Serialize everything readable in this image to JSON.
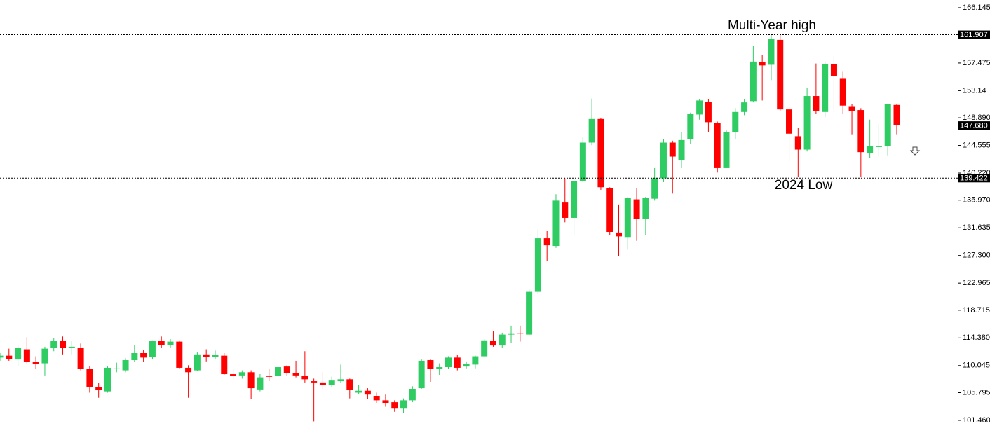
{
  "chart_data": {
    "type": "candlestick",
    "up_color": "#2ecc63",
    "down_color": "#ff0000",
    "ylim": [
      99.48,
      167.35
    ],
    "yticks": [
      166.145,
      157.475,
      153.14,
      {
        "value": 148.89,
        "label": "148.890"
      },
      144.555,
      {
        "value": 140.22,
        "label": "140.220"
      },
      {
        "value": 135.97,
        "label": "135.970"
      },
      131.635,
      {
        "value": 127.3,
        "label": "127.300"
      },
      122.965,
      118.715,
      {
        "value": 114.38,
        "label": "114.380"
      },
      110.045,
      105.795,
      {
        "value": 101.46,
        "label": "101.460"
      }
    ],
    "levels": [
      {
        "value": 161.907,
        "dotted": true
      },
      {
        "value": 147.68,
        "label": "147.680",
        "dotted": false
      },
      {
        "value": 139.422,
        "dotted": true
      }
    ],
    "annotations": [
      "Multi-Year high",
      "2024 Low"
    ],
    "open": [
      111.3,
      111.6,
      111.0,
      112.6,
      110.6,
      110.4,
      112.8,
      113.9,
      112.8,
      112.8,
      109.5,
      106.7,
      106.0,
      109.5,
      109.3,
      110.9,
      112.0,
      111.4,
      113.9,
      113.3,
      113.8,
      109.7,
      109.3,
      111.8,
      111.4,
      111.6,
      108.7,
      108.5,
      109.0,
      106.3,
      108.4,
      108.4,
      109.9,
      108.9,
      108.4,
      107.6,
      107.4,
      107.0,
      107.6,
      107.9,
      105.8,
      106.1,
      105.3,
      104.6,
      104.3,
      103.3,
      104.6,
      106.5,
      110.9,
      109.5,
      109.8,
      111.3,
      109.9,
      110.2,
      111.5,
      113.9,
      113.2,
      114.9,
      115.1,
      114.9,
      121.6,
      130.0,
      128.8,
      135.6,
      133.2,
      139.0,
      145.0,
      148.7,
      137.9,
      130.9,
      130.2,
      136.1,
      133.0,
      136.2,
      139.4,
      145.0,
      142.3,
      145.5,
      149.4,
      151.4,
      148.1,
      141.0,
      146.7,
      149.8,
      151.5,
      157.6,
      157.2,
      161.1,
      150.2,
      146.0,
      143.9,
      152.3,
      149.8,
      157.3,
      155.0,
      150.6,
      150.1,
      143.4,
      144.3,
      144.4,
      150.9
    ],
    "high": [
      112.0,
      112.7,
      113.2,
      114.5,
      111.5,
      113.0,
      114.3,
      114.6,
      113.9,
      113.5,
      110.0,
      107.3,
      109.9,
      110.5,
      111.2,
      113.3,
      112.5,
      114.0,
      114.6,
      114.2,
      114.0,
      110.1,
      112.1,
      112.6,
      112.4,
      112.0,
      109.5,
      109.3,
      109.3,
      108.7,
      109.6,
      110.1,
      110.1,
      110.8,
      112.3,
      108.0,
      109.0,
      108.3,
      110.2,
      108.0,
      107.0,
      106.5,
      105.8,
      105.5,
      104.6,
      104.9,
      106.8,
      111.0,
      111.0,
      110.4,
      111.5,
      111.7,
      110.7,
      111.6,
      114.2,
      115.4,
      115.2,
      116.3,
      116.3,
      122.0,
      131.4,
      131.2,
      136.9,
      139.4,
      139.4,
      145.9,
      151.9,
      148.8,
      138.0,
      135.3,
      136.5,
      137.8,
      136.5,
      141.0,
      145.6,
      145.3,
      146.7,
      149.7,
      151.8,
      151.8,
      148.3,
      146.9,
      150.4,
      151.8,
      160.2,
      158.7,
      161.9,
      161.9,
      151.0,
      147.3,
      153.6,
      157.4,
      157.6,
      158.6,
      156.1,
      151.0,
      150.4,
      148.6,
      147.9,
      151.1,
      151.0
    ],
    "low": [
      110.8,
      110.8,
      110.0,
      110.4,
      109.5,
      108.5,
      112.3,
      111.8,
      111.8,
      109.3,
      105.8,
      105.0,
      105.8,
      109.0,
      109.0,
      110.6,
      110.6,
      111.0,
      112.8,
      112.8,
      109.5,
      105.0,
      109.2,
      110.7,
      111.0,
      108.6,
      108.0,
      108.0,
      104.8,
      106.0,
      107.6,
      108.2,
      108.4,
      108.2,
      107.4,
      101.3,
      106.4,
      106.7,
      107.3,
      104.9,
      105.6,
      104.8,
      104.2,
      103.6,
      102.8,
      102.6,
      104.3,
      106.4,
      107.5,
      108.6,
      109.5,
      109.3,
      109.6,
      109.6,
      111.4,
      113.0,
      112.8,
      113.6,
      113.8,
      114.8,
      121.3,
      126.4,
      128.5,
      132.5,
      130.5,
      138.8,
      144.6,
      137.6,
      130.5,
      127.2,
      128.2,
      129.6,
      130.5,
      135.9,
      138.8,
      137.0,
      141.0,
      144.8,
      148.6,
      146.6,
      140.3,
      141.0,
      145.6,
      149.3,
      151.3,
      151.6,
      154.8,
      150.0,
      142.0,
      139.6,
      143.6,
      149.5,
      149.0,
      149.8,
      149.5,
      146.3,
      139.6,
      142.6,
      142.8,
      143.0,
      146.3
    ],
    "close": [
      111.6,
      111.1,
      112.8,
      110.6,
      110.3,
      112.7,
      113.9,
      112.8,
      113.0,
      109.5,
      106.7,
      106.2,
      109.7,
      109.6,
      110.9,
      112.0,
      111.3,
      113.9,
      113.3,
      113.8,
      109.7,
      109.0,
      111.8,
      111.4,
      111.7,
      108.7,
      108.4,
      109.0,
      106.5,
      108.2,
      108.3,
      109.8,
      108.9,
      108.5,
      107.9,
      107.4,
      107.0,
      107.7,
      107.9,
      106.2,
      106.1,
      105.5,
      104.6,
      104.2,
      103.3,
      104.6,
      106.4,
      110.8,
      109.5,
      109.8,
      111.3,
      109.7,
      110.3,
      111.5,
      114.0,
      113.2,
      114.9,
      115.1,
      115.0,
      121.6,
      130.0,
      128.9,
      135.9,
      133.2,
      139.0,
      145.0,
      148.7,
      138.0,
      131.0,
      130.3,
      136.3,
      133.0,
      136.3,
      139.4,
      145.0,
      142.8,
      145.4,
      149.5,
      151.6,
      148.2,
      141.0,
      146.7,
      149.8,
      151.3,
      157.7,
      157.1,
      161.3,
      150.2,
      146.4,
      143.9,
      152.3,
      150.0,
      157.3,
      155.4,
      150.8,
      150.0,
      143.5,
      144.4,
      144.5,
      151.0,
      147.7
    ]
  }
}
